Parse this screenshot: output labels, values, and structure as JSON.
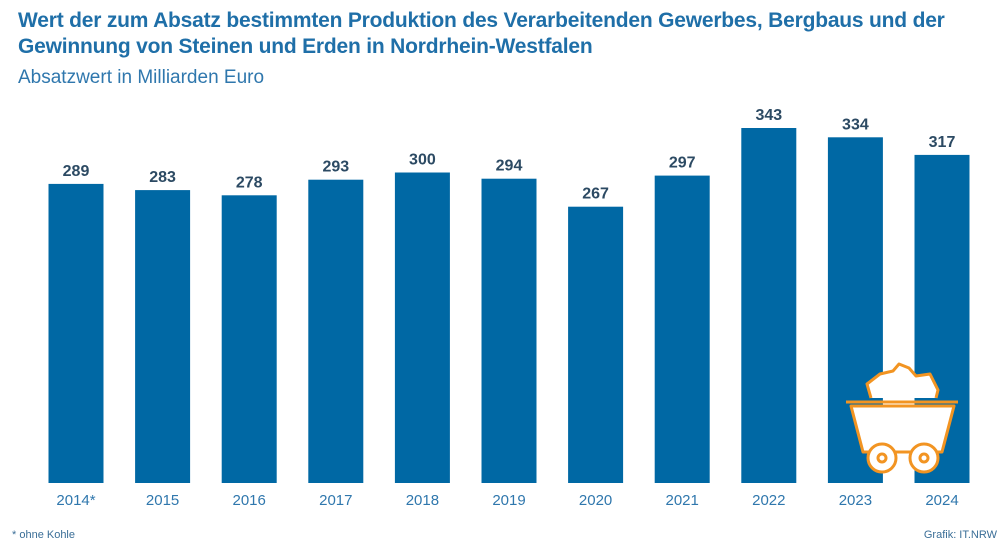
{
  "chart_data": {
    "type": "bar",
    "title": "Wert der zum Absatz bestimmten Produktion des Verarbeitenden Gewerbes, Bergbaus und der Gewinnung von Steinen und Erden in Nordrhein-Westfalen",
    "subtitle": "Absatzwert in Milliarden Euro",
    "categories": [
      "2014*",
      "2015",
      "2016",
      "2017",
      "2018",
      "2019",
      "2020",
      "2021",
      "2022",
      "2023",
      "2024"
    ],
    "values": [
      289,
      283,
      278,
      293,
      300,
      294,
      267,
      297,
      343,
      334,
      317
    ],
    "xlabel": "",
    "ylabel": "",
    "ylim": [
      0,
      343
    ],
    "grid": false,
    "bar_color": "#0068a4"
  },
  "footnote": "* ohne Kohle",
  "source": "Grafik: IT.NRW",
  "colors": {
    "title": "#1f6fa8",
    "accent_icon": "#f29422"
  },
  "icon": "mine-cart-icon"
}
